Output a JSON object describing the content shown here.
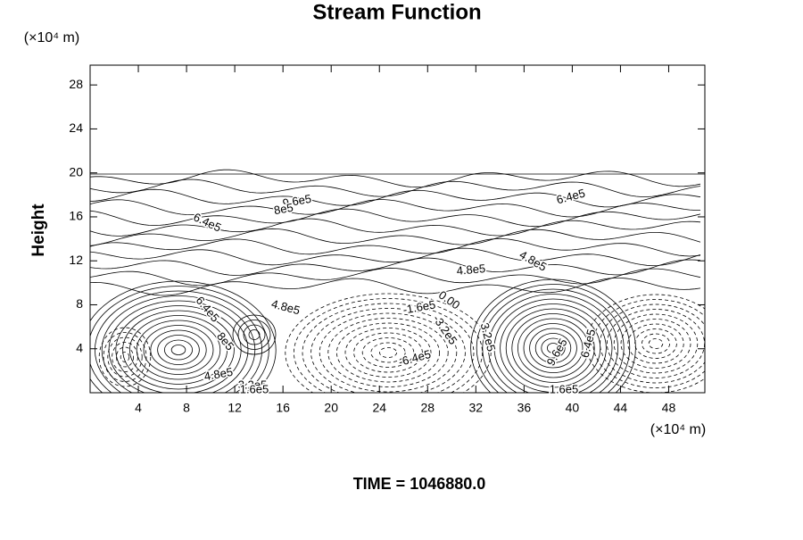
{
  "chart_data": {
    "type": "contour",
    "title": "Stream Function",
    "x_unit": "(×10⁴ m)",
    "y_unit": "(×10⁴ m)",
    "y_label": "Height",
    "footer": "TIME = 1046880.0",
    "xlim": [
      0,
      51
    ],
    "xticks": [
      4,
      8,
      12,
      16,
      20,
      24,
      28,
      32,
      36,
      40,
      44,
      48
    ],
    "ylim": [
      0,
      29.8
    ],
    "yticks": [
      4,
      8,
      12,
      16,
      20,
      24,
      28
    ],
    "annotations": [
      "6.4e5",
      "9.6e5",
      "8e5",
      "6.4e5",
      "4.8e5",
      "4.8e5",
      "6.4e5",
      "8e5",
      "4.8e5",
      "3.2e5",
      "1.6e5",
      "4.8e5",
      "0.00",
      "-1.6e5",
      "-3.2e5",
      "3.2e5",
      "-6.4e5",
      "9.6e5",
      "6.4e5",
      "1.6e5"
    ]
  }
}
